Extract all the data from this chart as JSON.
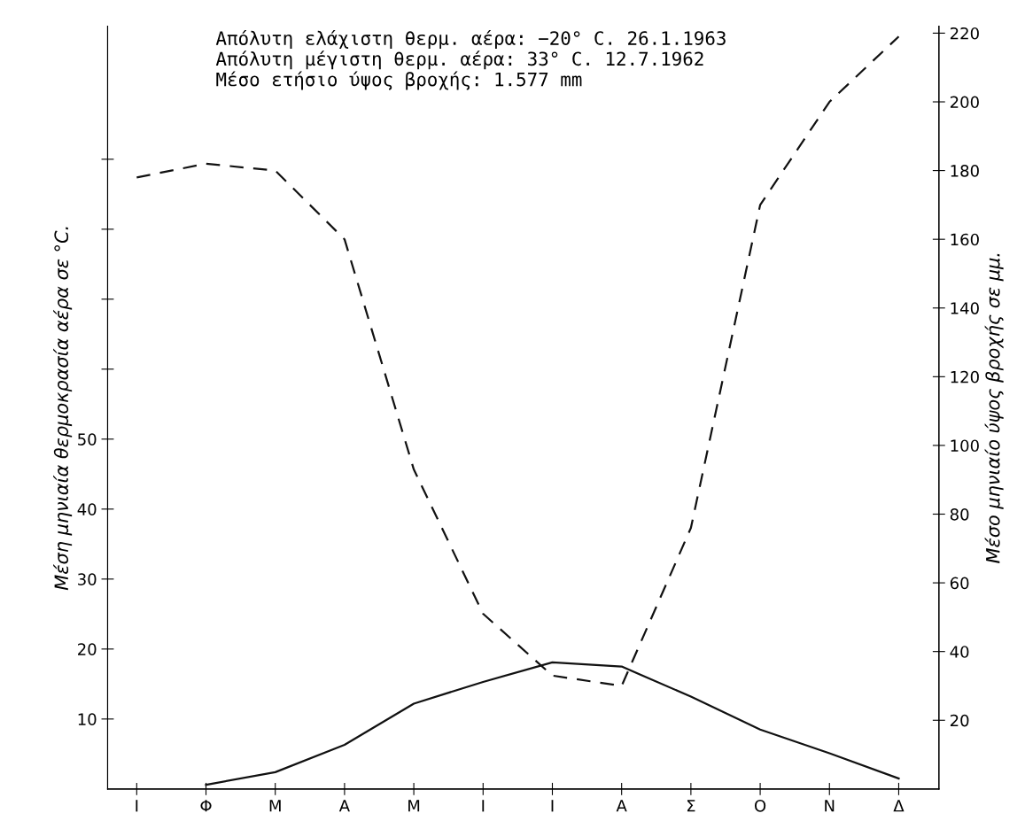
{
  "chart_data": {
    "type": "line",
    "categories": [
      "Ι",
      "Φ",
      "Μ",
      "Α",
      "Μ",
      "Ι",
      "Ι",
      "Α",
      "Σ",
      "Ο",
      "Ν",
      "Δ"
    ],
    "series": [
      {
        "color": "#111111",
        "line_style": "solid",
        "values": [
          null,
          0.6,
          2.4,
          6.3,
          12.2,
          15.3,
          18.1,
          17.5,
          13.2,
          8.5,
          5.1,
          1.5
        ]
      },
      {
        "color": "#111111",
        "line_style": "dashed",
        "axis": "y2",
        "values": [
          178,
          182,
          180,
          160,
          93,
          51,
          33,
          30,
          76,
          170,
          200,
          219
        ]
      }
    ],
    "ylabel": "Μέση μηνιαία θερμοκρασία αέρα σε °C.",
    "y2label": "Μέσο μηνιαίο ύψος βροχής σε μμ.",
    "ylim": [
      0,
      109
    ],
    "yticks": [
      10,
      20,
      30,
      40,
      50,
      {
        "value": 60,
        "label": null
      },
      {
        "value": 70,
        "label": null
      },
      {
        "value": 80,
        "label": null
      },
      {
        "value": 90,
        "label": null
      }
    ],
    "y2lim": [
      0,
      222
    ],
    "y2ticks": [
      20,
      40,
      60,
      80,
      100,
      120,
      140,
      160,
      180,
      200,
      220
    ],
    "annotations": [
      "Απόλυτη ελάχιστη θερμ. αέρα: −20° C. 26.1.1963",
      "Απόλυτη μέγιστη θερμ. αέρα: 33° C. 12.7.1962",
      "Μέσο ετήσιο ύψος βροχής: 1.577 mm"
    ],
    "grid": false,
    "legend": false,
    "marker": "none"
  }
}
